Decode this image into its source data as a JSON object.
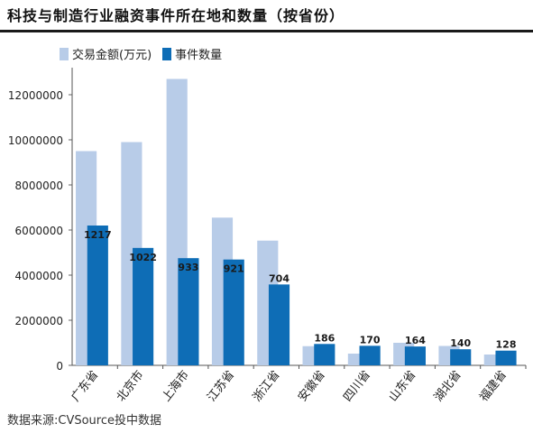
{
  "chart_data": {
    "type": "bar",
    "title": "科技与制造行业融资事件所在地和数量（按省份）",
    "categories": [
      "广东省",
      "北京市",
      "上海市",
      "江苏省",
      "浙江省",
      "安徽省",
      "四川省",
      "山东省",
      "湖北省",
      "福建省"
    ],
    "series": [
      {
        "name": "交易金额(万元)",
        "color": "#b8cce8",
        "values": [
          9500000,
          9900000,
          12700000,
          6550000,
          5530000,
          850000,
          520000,
          1000000,
          860000,
          480000
        ]
      },
      {
        "name": "事件数量",
        "color": "#0e6db6",
        "values": [
          1217,
          1022,
          933,
          921,
          704,
          186,
          170,
          164,
          140,
          128
        ]
      }
    ],
    "y_ticks": [
      "0",
      "2000000",
      "4000000",
      "6000000",
      "8000000",
      "10000000",
      "12000000"
    ],
    "ylim": [
      0,
      13000000
    ],
    "grid": false,
    "legend_position": "top-left"
  },
  "source": "数据来源:CVSource投中数据"
}
